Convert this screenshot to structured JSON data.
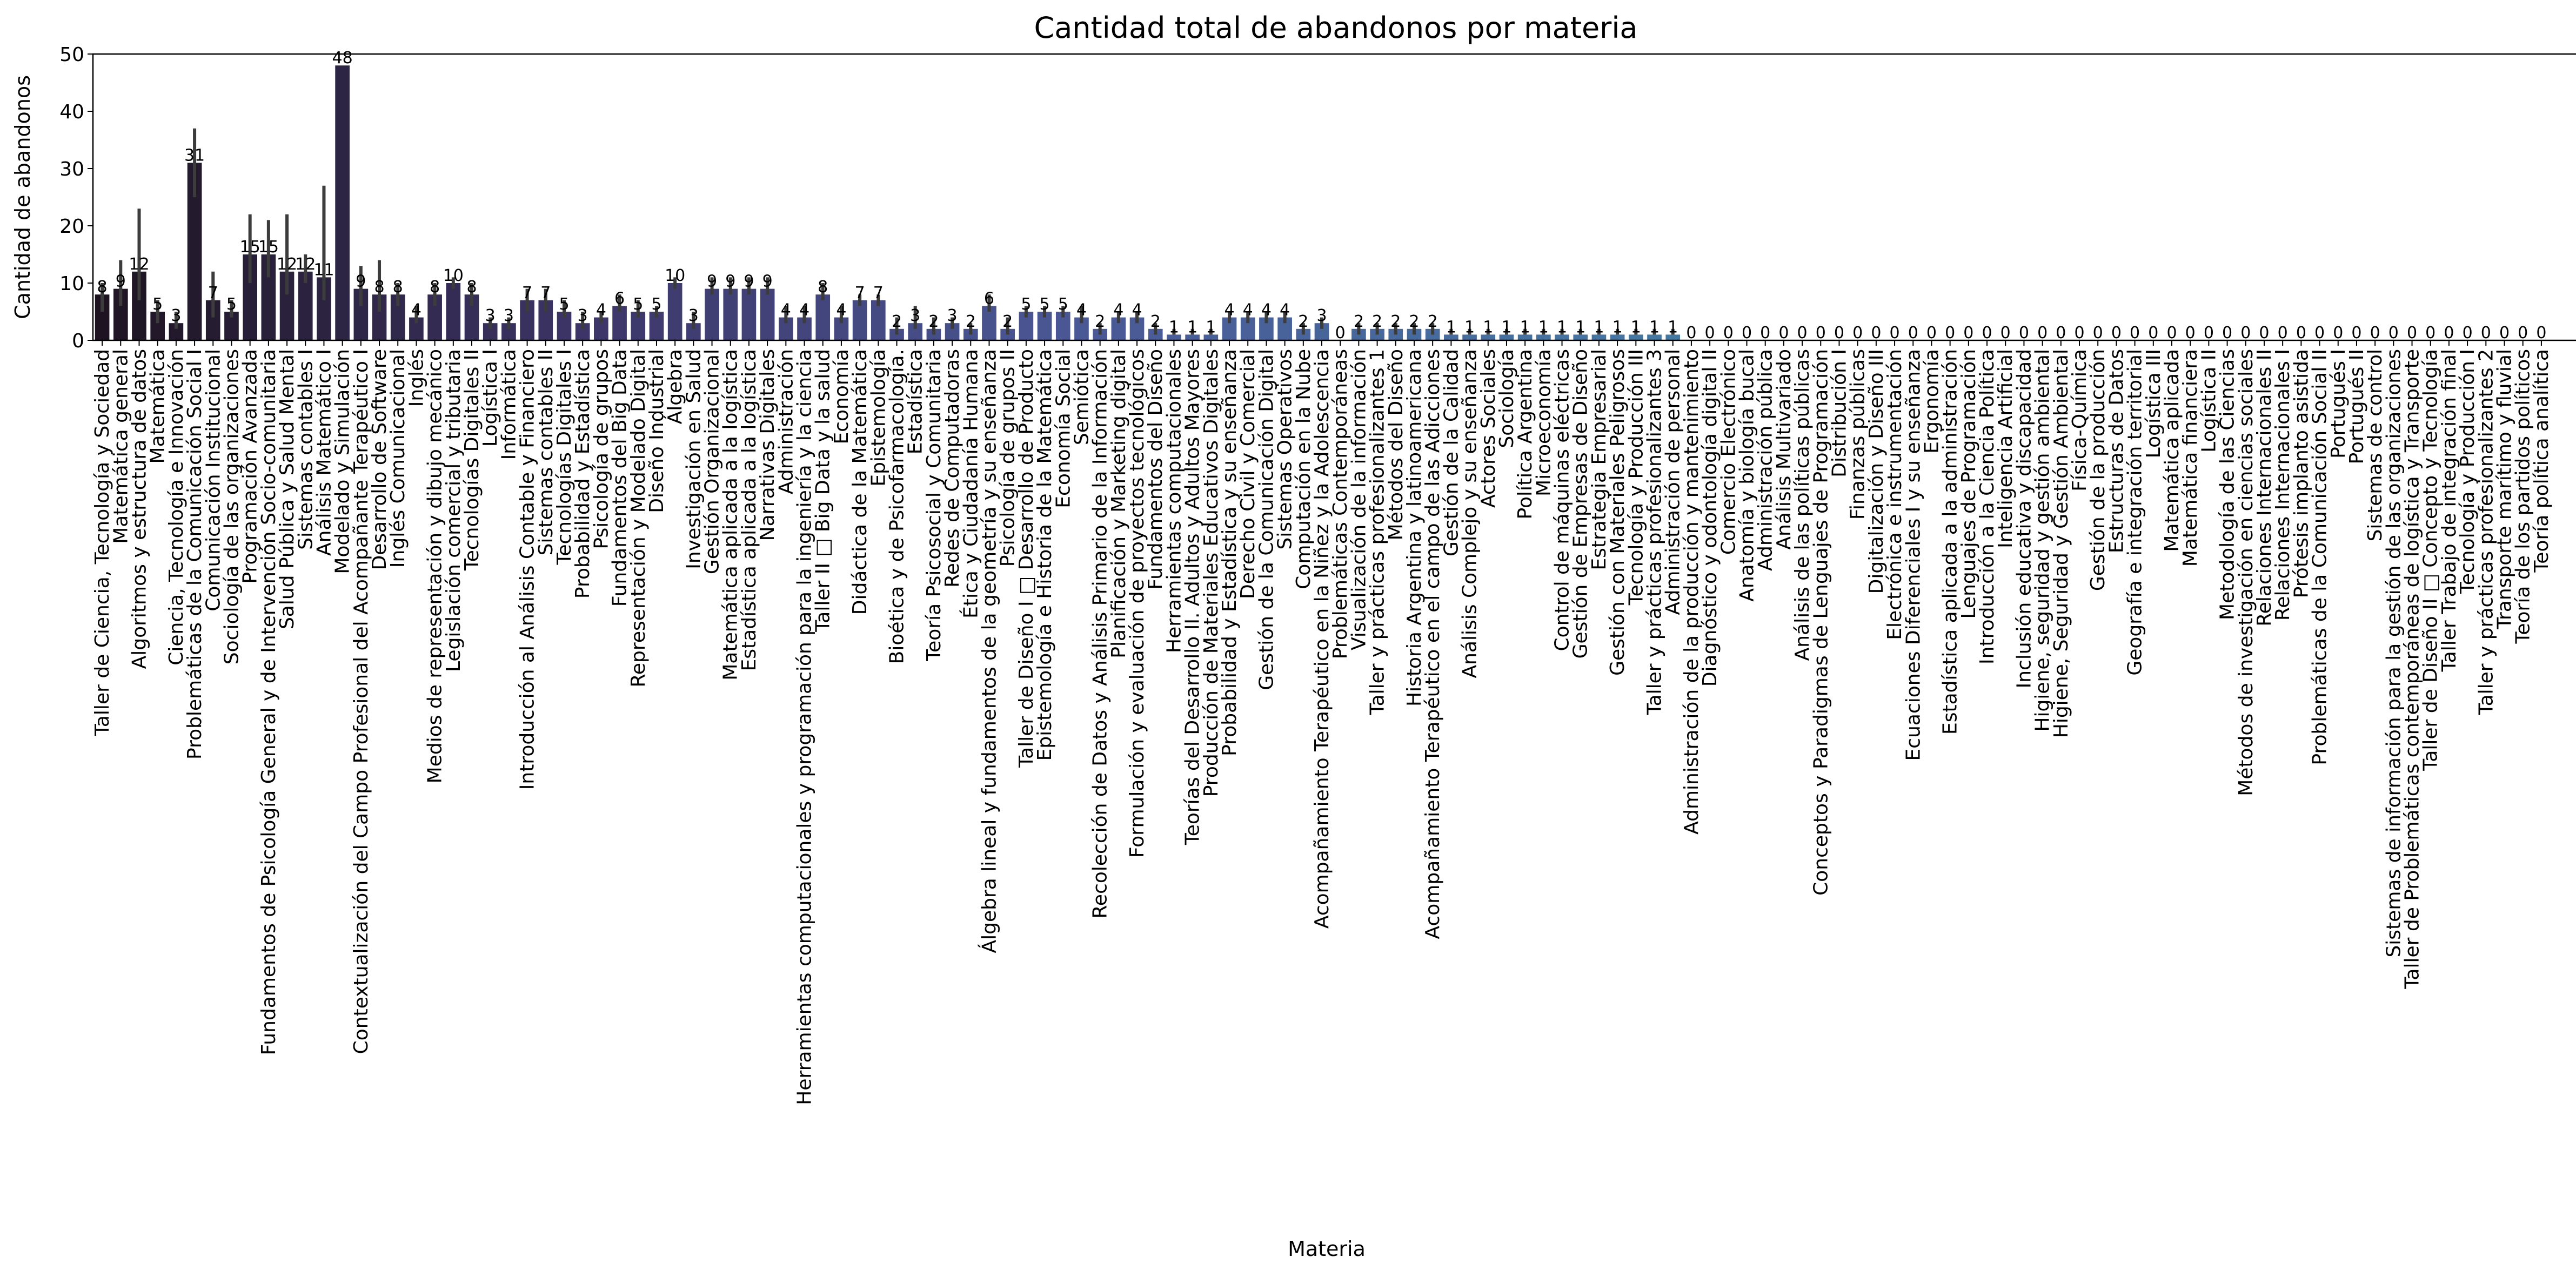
{
  "chart_data": {
    "type": "bar",
    "title": "Cantidad total de abandonos por materia",
    "xlabel": "Materia",
    "ylabel": "Cantidad de abandonos",
    "ylim": [
      0,
      50
    ],
    "yticks": [
      0,
      10,
      20,
      30,
      40,
      50
    ],
    "grid": false,
    "legend": "none",
    "palette": [
      "#1e1421",
      "#3d3668",
      "#4a5895",
      "#46729f",
      "#3f8ea7",
      "#47a9b0"
    ],
    "categories": [
      "Taller de Ciencia, Tecnología y Sociedad",
      "Matemática general",
      "Algoritmos y estructura de datos",
      "Matemática",
      "Ciencia, Tecnología e Innovación",
      "Problemáticas de la Comunicación Social I",
      "Comunicación Institucional",
      "Sociología de las organizaciones",
      "Programación Avanzada",
      "Fundamentos de Psicología General y de Intervención Socio-comunitaria",
      "Salud Pública y Salud Mental",
      "Sistemas contables I",
      "Análisis Matemático I",
      "Modelado y Simulación",
      "Contextualización del Campo Profesional del Acompañante Terapéutico I",
      "Desarrollo de Software",
      "Inglés Comunicacional",
      "Inglés",
      "Medios de representación y dibujo mecánico",
      "Legislación comercial y tributaria",
      "Tecnologías Digitales II",
      "Logística I",
      "Informática",
      "Introducción al Análisis Contable y Financiero",
      "Sistemas contables II",
      "Tecnologías Digitales I",
      "Probabilidad y Estadística",
      "Psicología de grupos",
      "Fundamentos del Big Data",
      "Representación y Modelado Digital",
      "Diseño Industrial",
      "Álgebra",
      "Investigación en Salud",
      "Gestión Organizacional",
      "Matemática aplicada a la logística",
      "Estadística aplicada a la logística",
      "Narrativas Digitales",
      "Administración",
      "Herramientas computacionales y programación para la ingeniería y la ciencia",
      "Taller II □ Big Data y la salud",
      "Economía",
      "Didáctica de la Matemática",
      "Epistemología",
      "Bioética y de Psicofarmacología.",
      "Estadística",
      "Teoría Psicosocial y Comunitaria",
      "Redes de Computadoras",
      "Ética y Ciudadanía Humana",
      "Álgebra lineal y fundamentos de la geometría y su enseñanza",
      "Psicología de grupos II",
      "Taller de Diseño I □ Desarrollo de Producto",
      "Epistemología e Historia de la Matemática",
      "Economía Social",
      "Semiótica",
      "Recolección de Datos y Análisis Primario de la Información",
      "Planificación y Marketing digital",
      "Formulación y evaluación de proyectos tecnológicos",
      "Fundamentos del Diseño",
      "Herramientas computacionales",
      "Teorías del Desarrollo II. Adultos y Adultos Mayores",
      "Producción de Materiales Educativos Digitales",
      "Probabilidad y Estadística y su enseñanza",
      "Derecho Civil y Comercial",
      "Gestión de la Comunicación Digital",
      "Sistemas Operativos",
      "Computación en la Nube",
      "Acompañamiento Terapéutico en la Niñez y la Adolescencia",
      "Problemáticas Contemporáneas",
      "Visualización de la información",
      "Taller y prácticas profesionalizantes 1",
      "Métodos del Diseño",
      "Historia Argentina y latinoamericana",
      "Acompañamiento Terapéutico en el campo de las Adicciones",
      "Gestión de la Calidad",
      "Análisis Complejo y su enseñanza",
      "Actores Sociales",
      "Sociología",
      "Política Argentina",
      "Microeconomía",
      "Control de máquinas eléctricas",
      "Gestión de Empresas de Diseño",
      "Estrategia Empresarial",
      "Gestión con Materiales Peligrosos",
      "Tecnología y Producción III",
      "Taller y prácticas profesionalizantes 3",
      "Administración de personal",
      "Administración de la producción y mantenimiento",
      "Diagnóstico y odontología digital II",
      "Comercio Electrónico",
      "Anatomía y biología bucal",
      "Administración pública",
      "Análisis Multivariado",
      "Análisis de las políticas públicas",
      "Conceptos y Paradigmas de Lenguajes de Programación",
      "Distribución I",
      "Finanzas públicas",
      "Digitalización y Diseño III",
      "Electrónica e instrumentación",
      "Ecuaciones Diferenciales I y su enseñanza",
      "Ergonomía",
      "Estadística aplicada a la administración",
      "Lenguajes de Programación",
      "Introducción a la Ciencia Política",
      "Inteligencia Artificial",
      "Inclusión educativa y discapacidad",
      "Higiene, seguridad y gestión ambiental",
      "Higiene, Seguridad y Gestión Ambiental",
      "Física-Química",
      "Gestión de la producción",
      "Estructuras de Datos",
      "Geografía e integración territorial",
      "Logística III",
      "Matemática aplicada",
      "Matemática financiera",
      "Logística II",
      "Metodología de las Ciencias",
      "Métodos de investigación en ciencias sociales",
      "Relaciones Internacionales II",
      "Relaciones Internacionales I",
      "Prótesis implanto asistida",
      "Problemáticas de la Comunicación Social II",
      "Portugués I",
      "Portugués II",
      "Sistemas de control",
      "Sistemas de información para la gestión de las organizaciones",
      "Taller de Problemáticas contemporáneas de logística y Transporte",
      "Taller de Diseño II □ Concepto y Tecnología",
      "Taller Trabajo de integración final",
      "Tecnología y Producción I",
      "Taller y prácticas profesionalizantes 2",
      "Transporte marítimo y fluvial",
      "Teoría de los partidos políticos",
      "Teoría política analítica"
    ],
    "values": [
      8,
      9,
      12,
      5,
      3,
      31,
      7,
      5,
      15,
      15,
      12,
      12,
      11,
      48,
      9,
      8,
      8,
      4,
      8,
      10,
      8,
      3,
      3,
      7,
      7,
      5,
      3,
      4,
      6,
      5,
      5,
      10,
      3,
      9,
      9,
      9,
      9,
      4,
      4,
      8,
      4,
      7,
      7,
      2,
      3,
      2,
      3,
      2,
      6,
      2,
      5,
      5,
      5,
      4,
      2,
      4,
      4,
      2,
      1,
      1,
      1,
      4,
      4,
      4,
      4,
      2,
      3,
      0,
      2,
      2,
      2,
      2,
      2,
      1,
      1,
      1,
      1,
      1,
      1,
      1,
      1,
      1,
      1,
      1,
      1,
      1,
      0,
      0,
      0,
      0,
      0,
      0,
      0,
      0,
      0,
      0,
      0,
      0,
      0,
      0,
      0,
      0,
      0,
      0,
      0,
      0,
      0,
      0,
      0,
      0,
      0,
      0,
      0,
      0,
      0,
      0,
      0,
      0,
      0,
      0,
      0,
      0,
      0,
      0,
      0,
      0,
      0,
      0,
      0,
      0,
      0,
      0,
      0
    ],
    "bar_labels": [
      "8",
      "9",
      "12",
      "5",
      "3",
      "31",
      "7",
      "5",
      "15",
      "15",
      "12",
      "12",
      "11",
      "48",
      "9",
      "8",
      "8",
      "4",
      "8",
      "10",
      "8",
      "3",
      "3",
      "7",
      "7",
      "5",
      "3",
      "4",
      "6",
      "5",
      "5",
      "10",
      "3",
      "9",
      "9",
      "9",
      "9",
      "4",
      "4",
      "8",
      "4",
      "7",
      "7",
      "2",
      "3",
      "2",
      "3",
      "2",
      "6",
      "2",
      "5",
      "5",
      "5",
      "4",
      "2",
      "4",
      "4",
      "2",
      "1",
      "1",
      "1",
      "4",
      "4",
      "4",
      "4",
      "2",
      "3",
      "0",
      "2",
      "2",
      "2",
      "2",
      "2",
      "1",
      "1",
      "1",
      "1",
      "1",
      "1",
      "1",
      "1",
      "1",
      "1",
      "1",
      "1",
      "1",
      "0",
      "0",
      "0",
      "0",
      "0",
      "0",
      "0",
      "0",
      "0",
      "0",
      "0",
      "0",
      "0",
      "0",
      "0",
      "0",
      "0",
      "0",
      "0",
      "0",
      "0",
      "0",
      "0",
      "0",
      "0",
      "0",
      "0",
      "0",
      "0",
      "0",
      "0",
      "0",
      "0",
      "0",
      "0",
      "0",
      "0",
      "0",
      "0",
      "0",
      "0",
      "0",
      "0",
      "0",
      "0",
      "0",
      "0"
    ],
    "error_upper": [
      10,
      14,
      23,
      7,
      5,
      37,
      12,
      7,
      22,
      21,
      22,
      15,
      27,
      null,
      13,
      14,
      10,
      6,
      10,
      11,
      10,
      4,
      4,
      9,
      9,
      7,
      5,
      5,
      8,
      7,
      6,
      11,
      5,
      11,
      11,
      11,
      11,
      6,
      6,
      10,
      6,
      8,
      8,
      4,
      6,
      4,
      4,
      3,
      8,
      4,
      6,
      6,
      6,
      6,
      3,
      5,
      5,
      3,
      2,
      2,
      2,
      5,
      5,
      5,
      5,
      3,
      4,
      0,
      3,
      3,
      3,
      3,
      3,
      2,
      2,
      2,
      2,
      2,
      2,
      2,
      2,
      2,
      2,
      2,
      2,
      2,
      0,
      0,
      0,
      0,
      0,
      0,
      0,
      0,
      0,
      0,
      0,
      0,
      0,
      0,
      0,
      0,
      0,
      0,
      0,
      0,
      0,
      0,
      0,
      0,
      0,
      0,
      0,
      0,
      0,
      0,
      0,
      0,
      0,
      0,
      0,
      0,
      0,
      0,
      0,
      0,
      0,
      0,
      0,
      0,
      0,
      0,
      0
    ],
    "error_lower": [
      5,
      6,
      7,
      3,
      2,
      25,
      4,
      4,
      10,
      11,
      8,
      10,
      7,
      null,
      6,
      5,
      6,
      3,
      6,
      9,
      6,
      2,
      2,
      5,
      5,
      4,
      2,
      3,
      5,
      4,
      4,
      9,
      2,
      8,
      8,
      8,
      8,
      3,
      3,
      7,
      3,
      6,
      6,
      1,
      2,
      1,
      2,
      1,
      5,
      1,
      4,
      4,
      4,
      3,
      1,
      3,
      3,
      1,
      1,
      1,
      1,
      3,
      3,
      3,
      3,
      1,
      2,
      0,
      1,
      1,
      1,
      1,
      1,
      1,
      1,
      1,
      1,
      1,
      1,
      1,
      1,
      1,
      1,
      1,
      1,
      1,
      0,
      0,
      0,
      0,
      0,
      0,
      0,
      0,
      0,
      0,
      0,
      0,
      0,
      0,
      0,
      0,
      0,
      0,
      0,
      0,
      0,
      0,
      0,
      0,
      0,
      0,
      0,
      0,
      0,
      0,
      0,
      0,
      0,
      0,
      0,
      0,
      0,
      0,
      0,
      0,
      0,
      0,
      0,
      0,
      0,
      0,
      0
    ]
  }
}
